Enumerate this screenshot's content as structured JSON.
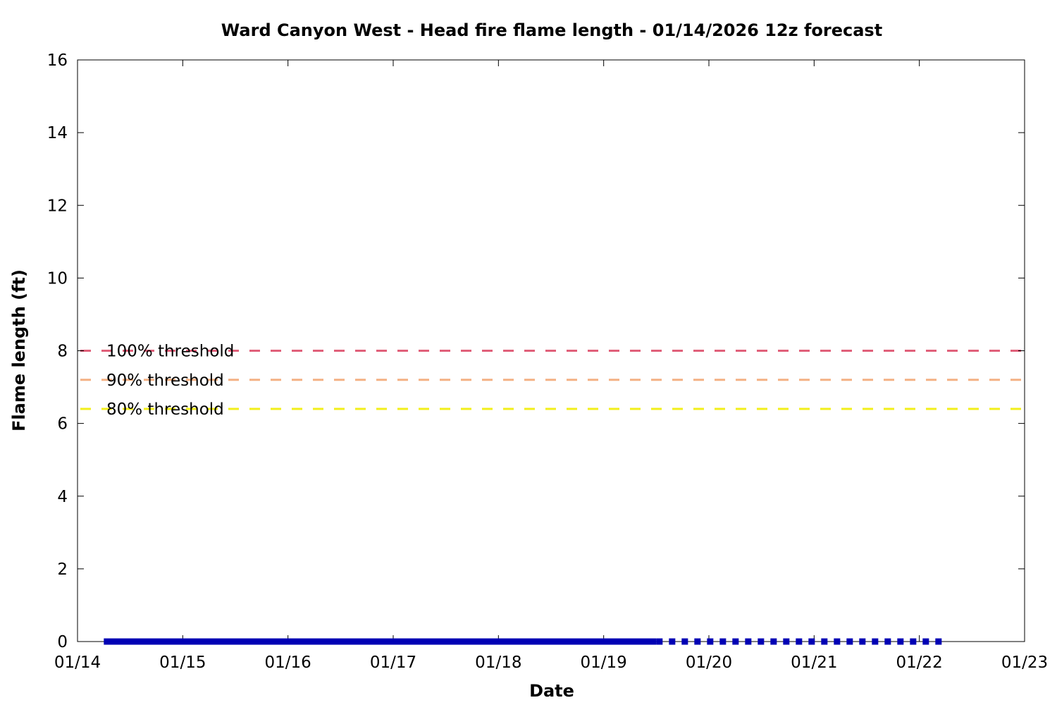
{
  "chart_data": {
    "type": "line",
    "title": "Ward Canyon West - Head fire flame length - 01/14/2026 12z forecast",
    "xlabel": "Date",
    "ylabel": "Flame length (ft)",
    "xlim": [
      "01/14",
      "01/23"
    ],
    "ylim": [
      0,
      16
    ],
    "x_ticks": [
      "01/14",
      "01/15",
      "01/16",
      "01/17",
      "01/18",
      "01/19",
      "01/20",
      "01/21",
      "01/22",
      "01/23"
    ],
    "y_ticks": [
      "0",
      "2",
      "4",
      "6",
      "8",
      "10",
      "12",
      "14",
      "16"
    ],
    "grid": false,
    "thresholds": [
      {
        "label": "100% threshold",
        "value": 8.0,
        "color": "#e0607a"
      },
      {
        "label": "90% threshold",
        "value": 7.2,
        "color": "#f4b183"
      },
      {
        "label": "80% threshold",
        "value": 6.4,
        "color": "#f2ef1a"
      }
    ],
    "series": [
      {
        "style": "solid",
        "color": "#0000b4",
        "x": [
          "01/14 06:00",
          "01/19 12:00"
        ],
        "y": [
          0,
          0
        ]
      },
      {
        "style": "dotted",
        "color": "#0000b4",
        "x": [
          "01/19 12:00",
          "01/22 06:00"
        ],
        "y": [
          0,
          0
        ]
      }
    ]
  }
}
